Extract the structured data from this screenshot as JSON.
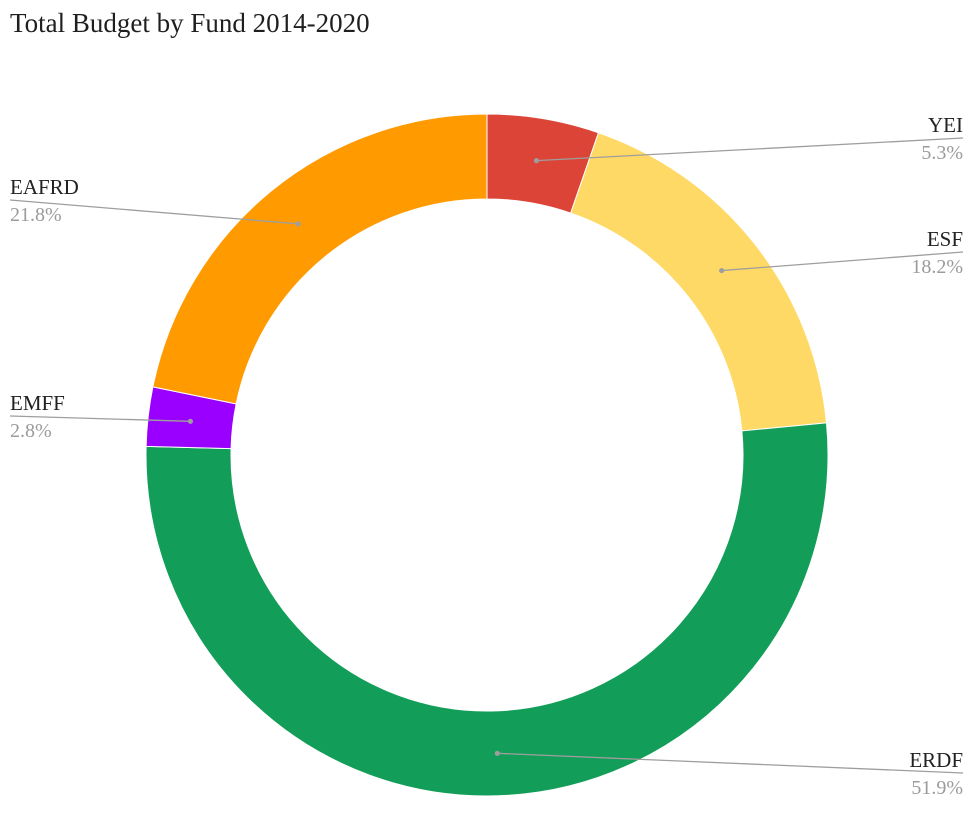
{
  "chart_data": {
    "type": "pie",
    "title": "Total Budget by Fund 2014-2020",
    "categories": [
      "YEI",
      "ESF",
      "ERDF",
      "EMFF",
      "EAFRD"
    ],
    "values": [
      5.3,
      18.2,
      51.9,
      2.8,
      21.8
    ],
    "value_labels": [
      "5.3%",
      "18.2%",
      "51.9%",
      "2.8%",
      "21.8%"
    ],
    "colors": [
      "#db4437",
      "#ffd966",
      "#129d58",
      "#9900ff",
      "#ff9a00"
    ],
    "hole": true,
    "legend": "none",
    "label_sides": [
      "right",
      "right",
      "right",
      "left",
      "left"
    ]
  }
}
